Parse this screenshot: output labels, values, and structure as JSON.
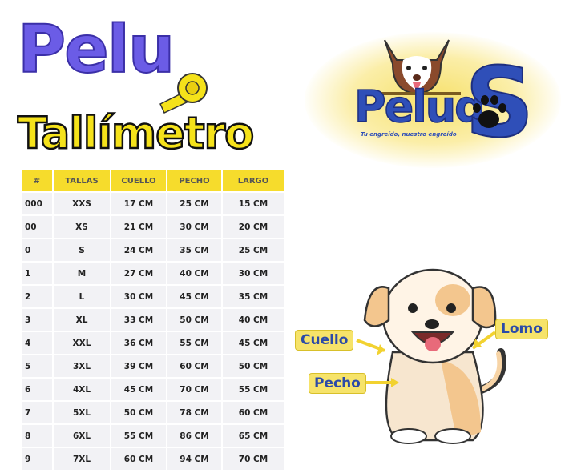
{
  "title": {
    "line1": "Pelu",
    "line2": "Tallímetro"
  },
  "logo": {
    "brand": "Pelud",
    "brand_s": "S",
    "tagline": "Tu engreído, nuestro engreído"
  },
  "table": {
    "headers": [
      "#",
      "TALLAS",
      "CUELLO",
      "PECHO",
      "LARGO"
    ],
    "rows": [
      [
        "000",
        "XXS",
        "17 CM",
        "25 CM",
        "15 CM"
      ],
      [
        "00",
        "XS",
        "21 CM",
        "30 CM",
        "20 CM"
      ],
      [
        "0",
        "S",
        "24 CM",
        "35 CM",
        "25 CM"
      ],
      [
        "1",
        "M",
        "27 CM",
        "40 CM",
        "30 CM"
      ],
      [
        "2",
        "L",
        "30 CM",
        "45 CM",
        "35 CM"
      ],
      [
        "3",
        "XL",
        "33 CM",
        "50 CM",
        "40 CM"
      ],
      [
        "4",
        "XXL",
        "36 CM",
        "55 CM",
        "45 CM"
      ],
      [
        "5",
        "3XL",
        "39 CM",
        "60 CM",
        "50 CM"
      ],
      [
        "6",
        "4XL",
        "45 CM",
        "70 CM",
        "55 CM"
      ],
      [
        "7",
        "5XL",
        "50 CM",
        "78 CM",
        "60 CM"
      ],
      [
        "8",
        "6XL",
        "55 CM",
        "86 CM",
        "65 CM"
      ],
      [
        "9",
        "7XL",
        "60 CM",
        "94 CM",
        "70 CM"
      ]
    ]
  },
  "labels": {
    "cuello": "Cuello",
    "lomo": "Lomo",
    "pecho": "Pecho"
  },
  "colors": {
    "header_yellow": "#f6dc2c",
    "title_purple": "#6b5ce6",
    "brand_blue": "#2f4fb8",
    "label_bg": "#f6e36a"
  }
}
